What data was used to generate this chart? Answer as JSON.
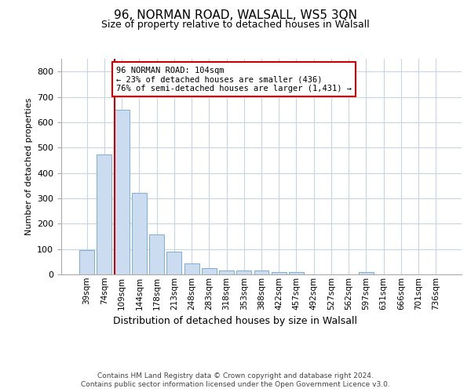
{
  "title": "96, NORMAN ROAD, WALSALL, WS5 3QN",
  "subtitle": "Size of property relative to detached houses in Walsall",
  "xlabel": "Distribution of detached houses by size in Walsall",
  "ylabel": "Number of detached properties",
  "bar_labels": [
    "39sqm",
    "74sqm",
    "109sqm",
    "144sqm",
    "178sqm",
    "213sqm",
    "248sqm",
    "283sqm",
    "318sqm",
    "353sqm",
    "388sqm",
    "422sqm",
    "457sqm",
    "492sqm",
    "527sqm",
    "562sqm",
    "597sqm",
    "631sqm",
    "666sqm",
    "701sqm",
    "736sqm"
  ],
  "bar_values": [
    95,
    472,
    648,
    323,
    157,
    90,
    42,
    25,
    15,
    15,
    15,
    10,
    8,
    0,
    0,
    0,
    8,
    0,
    0,
    0,
    0
  ],
  "bar_color": "#ccdcf0",
  "bar_edge_color": "#7bafd4",
  "vline_index": 2,
  "vline_color": "#cc0000",
  "annotation_line1": "96 NORMAN ROAD: 104sqm",
  "annotation_line2": "← 23% of detached houses are smaller (436)",
  "annotation_line3": "76% of semi-detached houses are larger (1,431) →",
  "annotation_box_edgecolor": "#cc0000",
  "ylim": [
    0,
    850
  ],
  "yticks": [
    0,
    100,
    200,
    300,
    400,
    500,
    600,
    700,
    800
  ],
  "grid_color": "#c8d4e4",
  "bg_color": "#ffffff",
  "footer_line1": "Contains HM Land Registry data © Crown copyright and database right 2024.",
  "footer_line2": "Contains public sector information licensed under the Open Government Licence v3.0."
}
